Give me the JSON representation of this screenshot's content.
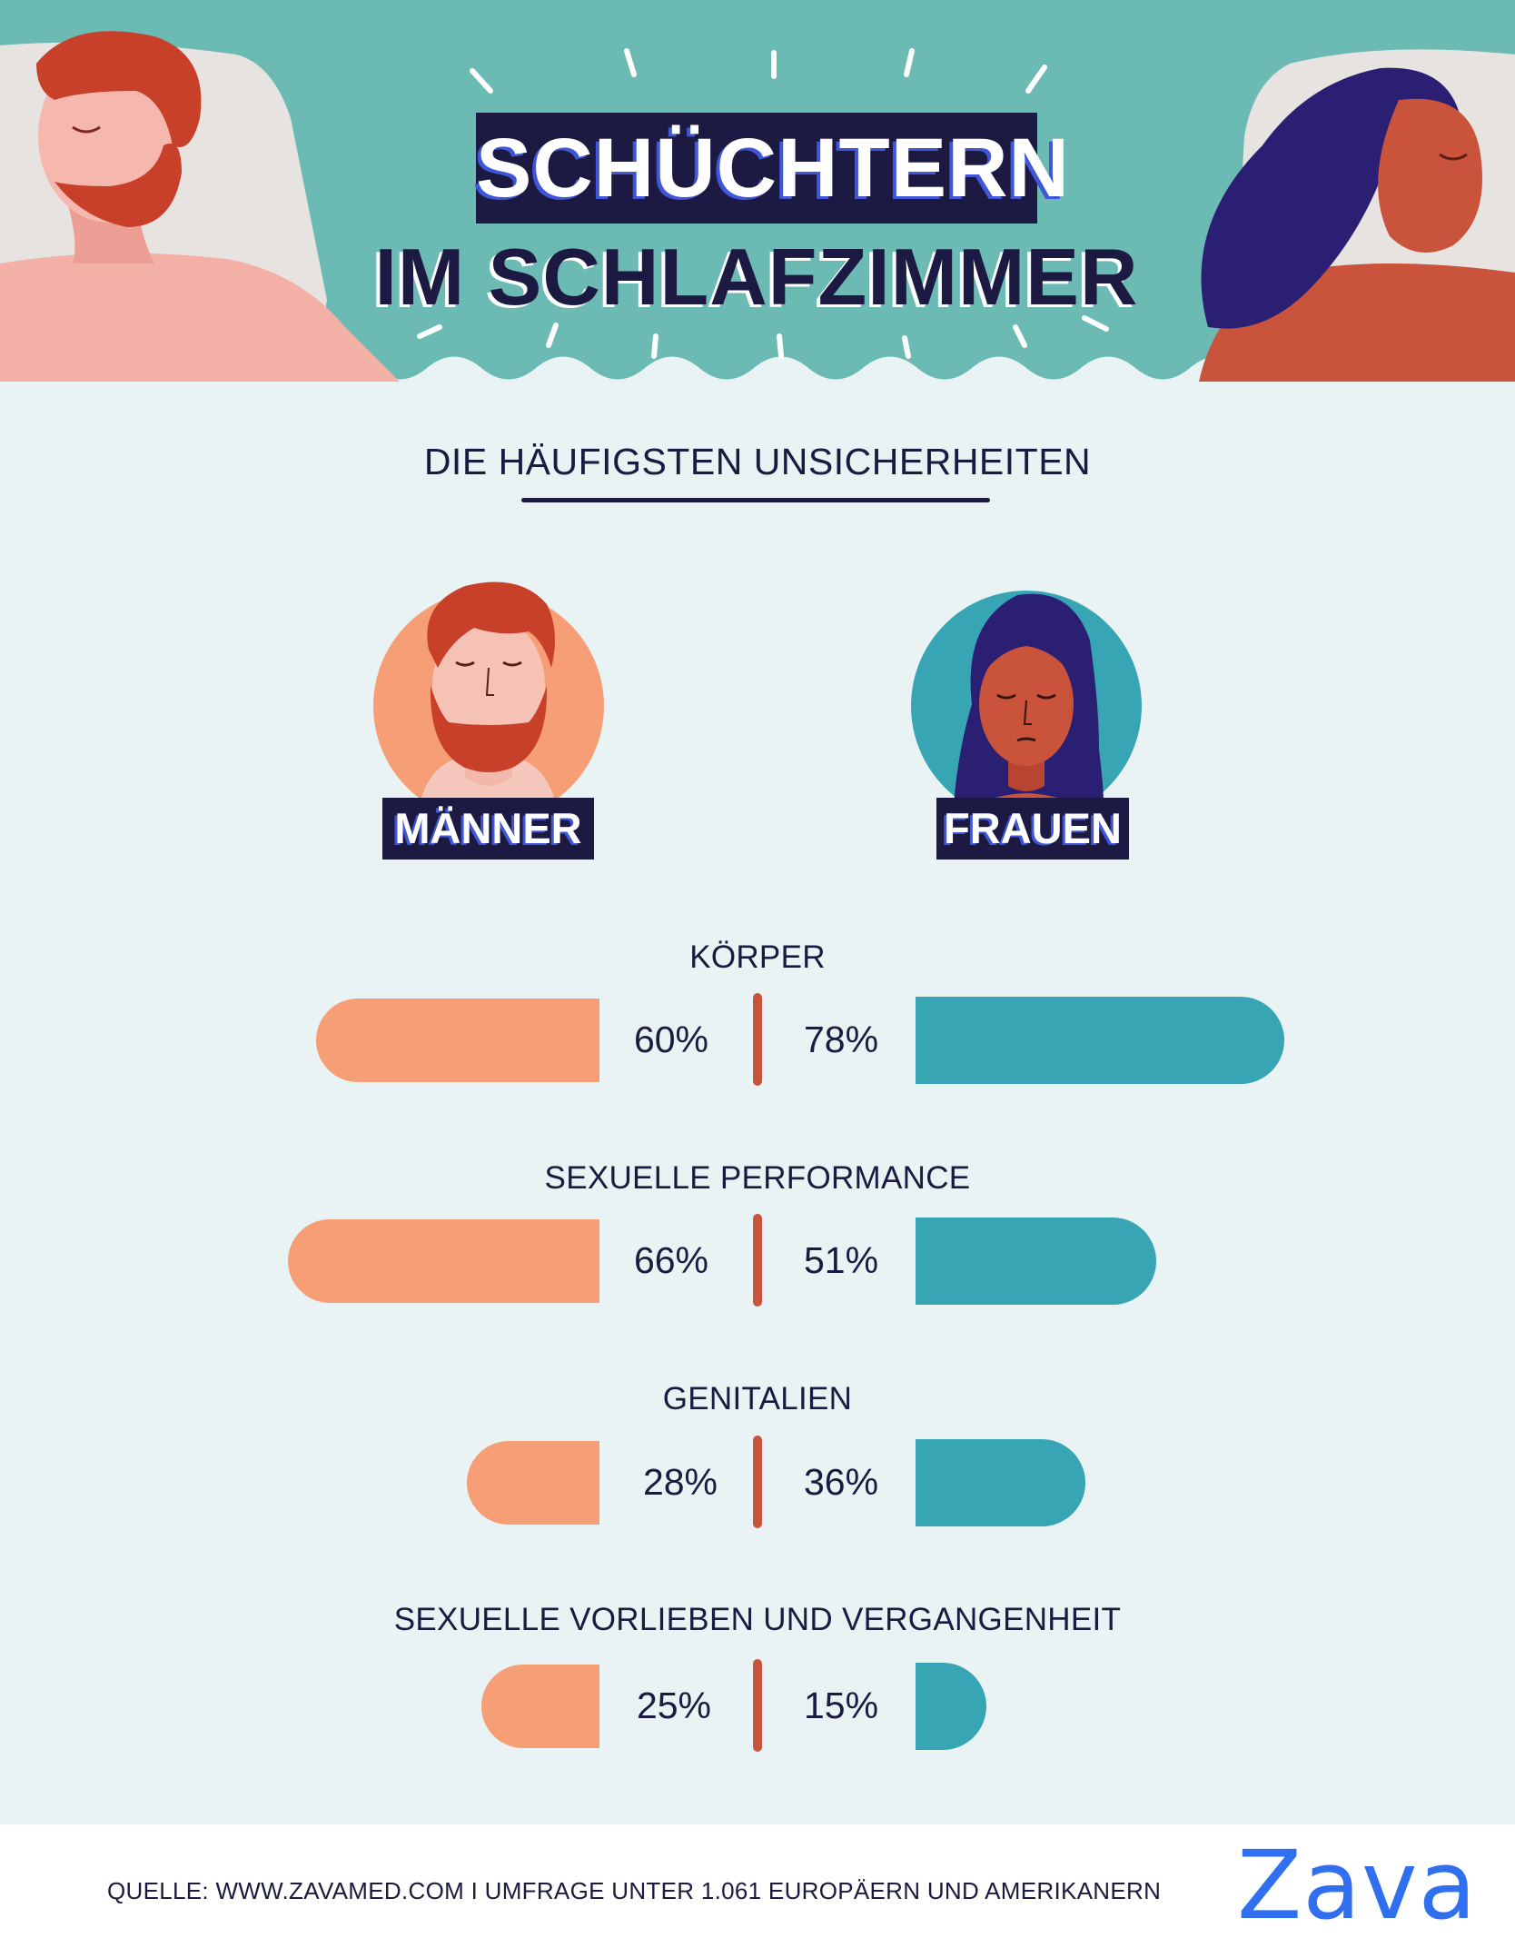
{
  "title": {
    "line1": "SCHÜCHTERN",
    "line2": "IM SCHLAFZIMMER"
  },
  "subtitle": "DIE HÄUFIGSTEN UNSICHERHEITEN",
  "groups": {
    "men": "MÄNNER",
    "women": "FRAUEN"
  },
  "chart_data": {
    "type": "bar",
    "layout": "diverging",
    "categories": [
      "KÖRPER",
      "SEXUELLE PERFORMANCE",
      "GENITALIEN",
      "SEXUELLE VORLIEBEN UND VERGANGENHEIT"
    ],
    "series": [
      {
        "name": "MÄNNER",
        "values": [
          60,
          66,
          28,
          25
        ],
        "labels": [
          "60%",
          "66%",
          "28%",
          "25%"
        ],
        "color": "#f69e76"
      },
      {
        "name": "FRAUEN",
        "values": [
          78,
          51,
          36,
          15
        ],
        "labels": [
          "78%",
          "51%",
          "36%",
          "15%"
        ],
        "color": "#38a5b4"
      }
    ],
    "unit": "%",
    "divider_color": "#c7553e"
  },
  "footer": {
    "source": "QUELLE: WWW.ZAVAMED.COM I UMFRAGE UNTER 1.061 EUROPÄERN UND AMERIKANERN",
    "logo": "Zava"
  },
  "colors": {
    "header_teal": "#6cbab4",
    "background": "#eaf3f3",
    "navy": "#1c1a42",
    "accent_blue": "#3f56d8",
    "men_orange": "#f69e76",
    "women_teal": "#38a5b4",
    "logo_blue": "#2f6ff0"
  }
}
